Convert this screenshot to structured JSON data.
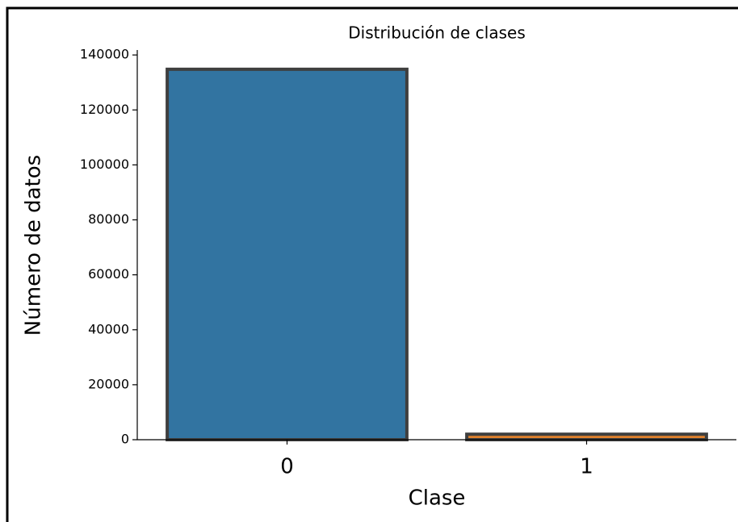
{
  "chart_data": {
    "type": "bar",
    "title": "Distribución de clases",
    "x_label": "Clase",
    "y_label": "Número de datos",
    "categories": [
      "0",
      "1"
    ],
    "values": [
      134800,
      2000
    ],
    "colors": [
      "#3274a1",
      "#e1812c"
    ],
    "edgecolor": "#3f3f3f",
    "ylim": [
      0,
      141800
    ],
    "yticks": [
      0,
      20000,
      40000,
      60000,
      80000,
      100000,
      120000,
      140000
    ]
  }
}
